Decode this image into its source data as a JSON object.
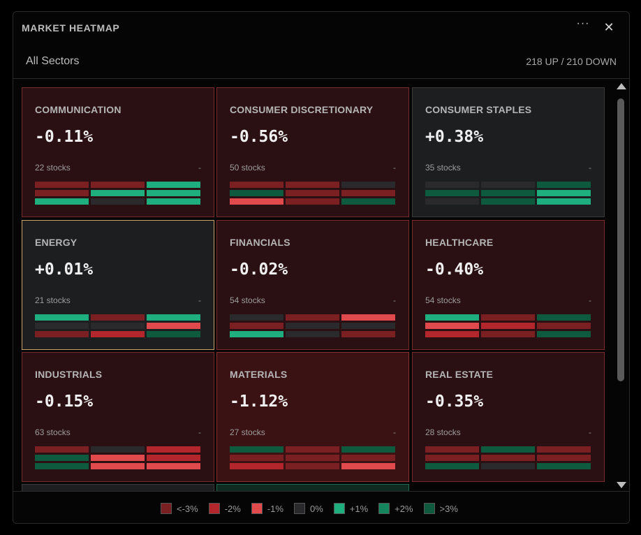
{
  "header": {
    "title": "MARKET HEATMAP",
    "menu_label": "···",
    "close_label": "✕"
  },
  "subheader": {
    "filter_label": "All Sectors",
    "summary": "218 UP / 210 DOWN"
  },
  "colors": {
    "neg3": "#7a1f22",
    "neg2": "#b3272c",
    "neg1": "#e04a4c",
    "zero": "#2a2a2c",
    "pos1": "#1fae7e",
    "pos2": "#14855d",
    "pos3": "#0d5a3f",
    "tile_negative": "#2a1012",
    "tile_neutral": "#1d1e20",
    "selected_border": "#c9a36a"
  },
  "sectors": [
    {
      "name": "COMMUNICATION",
      "change": "-0.11%",
      "count_label": "22 stocks",
      "trend": "-",
      "tone": "negative",
      "bars": [
        "neg3",
        "neg3",
        "pos1",
        "neg3",
        "pos1",
        "pos1",
        "pos1",
        "zero",
        "pos1"
      ]
    },
    {
      "name": "CONSUMER DISCRETIONARY",
      "change": "-0.56%",
      "count_label": "50 stocks",
      "trend": "-",
      "tone": "negative",
      "bars": [
        "neg3",
        "neg3",
        "zero",
        "pos3",
        "neg3",
        "neg3",
        "neg1",
        "neg3",
        "pos3"
      ]
    },
    {
      "name": "CONSUMER STAPLES",
      "change": "+0.38%",
      "count_label": "35 stocks",
      "trend": "-",
      "tone": "neutral",
      "bars": [
        "zero",
        "zero",
        "pos3",
        "pos3",
        "pos3",
        "pos1",
        "zero",
        "pos3",
        "pos1"
      ]
    },
    {
      "name": "ENERGY",
      "change": "+0.01%",
      "count_label": "21 stocks",
      "trend": "-",
      "tone": "neutral",
      "bars": [
        "pos1",
        "neg3",
        "pos1",
        "zero",
        "zero",
        "neg1",
        "neg3",
        "neg2",
        "pos3"
      ]
    },
    {
      "name": "FINANCIALS",
      "change": "-0.02%",
      "count_label": "54 stocks",
      "trend": "-",
      "tone": "negative",
      "bars": [
        "zero",
        "neg3",
        "neg1",
        "neg3",
        "zero",
        "zero",
        "pos1",
        "zero",
        "neg3"
      ]
    },
    {
      "name": "HEALTHCARE",
      "change": "-0.40%",
      "count_label": "54 stocks",
      "trend": "-",
      "tone": "negative",
      "bars": [
        "pos1",
        "neg3",
        "pos3",
        "neg1",
        "neg2",
        "neg3",
        "neg2",
        "neg3",
        "pos3"
      ]
    },
    {
      "name": "INDUSTRIALS",
      "change": "-0.15%",
      "count_label": "63 stocks",
      "trend": "-",
      "tone": "negative",
      "bars": [
        "neg3",
        "zero",
        "neg2",
        "pos3",
        "neg1",
        "neg2",
        "pos3",
        "neg1",
        "neg1"
      ]
    },
    {
      "name": "MATERIALS",
      "change": "-1.12%",
      "count_label": "27 stocks",
      "trend": "-",
      "tone": "strongneg",
      "bars": [
        "pos3",
        "neg3",
        "pos3",
        "neg3",
        "neg3",
        "neg3",
        "neg2",
        "neg3",
        "neg1"
      ]
    },
    {
      "name": "REAL ESTATE",
      "change": "-0.35%",
      "count_label": "28 stocks",
      "trend": "-",
      "tone": "negative",
      "bars": [
        "neg3",
        "pos3",
        "neg3",
        "neg3",
        "neg3",
        "neg3",
        "pos3",
        "zero",
        "pos3"
      ]
    }
  ],
  "legend": [
    {
      "label": "<-3%",
      "color": "#7a1f22"
    },
    {
      "label": "-2%",
      "color": "#b3272c"
    },
    {
      "label": "-1%",
      "color": "#e04a4c"
    },
    {
      "label": "0%",
      "color": "#2a2a2c"
    },
    {
      "label": "+1%",
      "color": "#1fae7e"
    },
    {
      "label": "+2%",
      "color": "#14855d"
    },
    {
      "label": ">3%",
      "color": "#0d5a3f"
    }
  ]
}
